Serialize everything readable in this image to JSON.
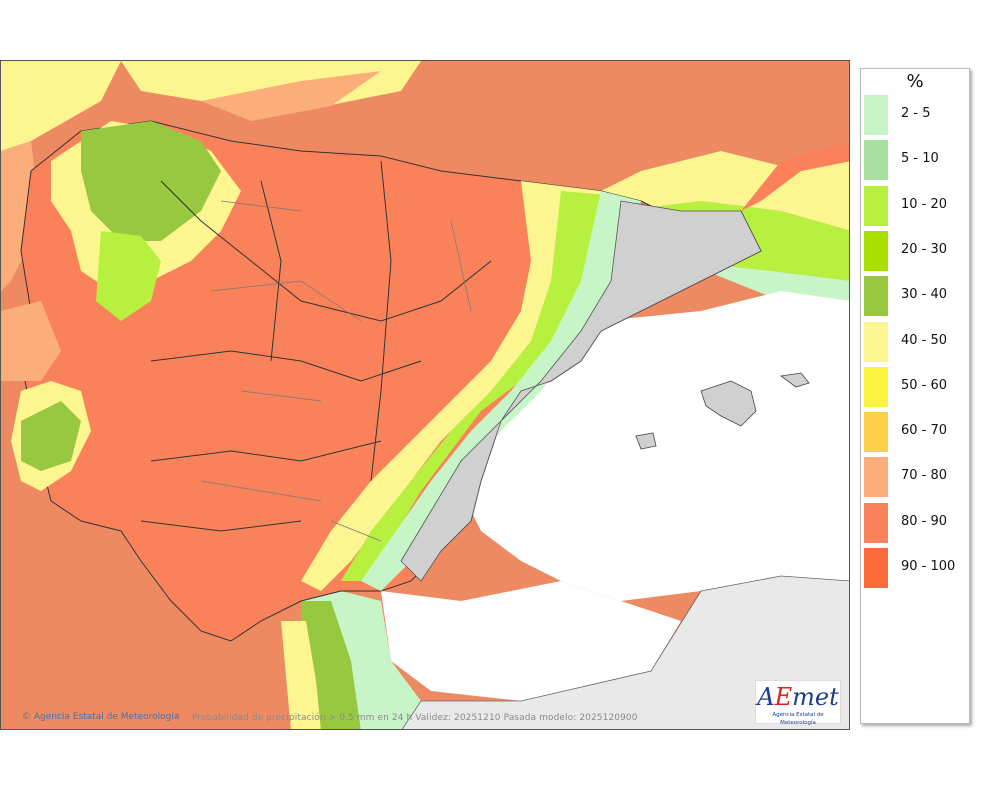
{
  "map": {
    "caption": "Probabilidad de precipitación > 0.5 mm en 24 h Validez: 20251210 Pasada modelo: 2025120900",
    "credit": "Agencia Estatal de Meteorología",
    "credit_symbol": "©",
    "sea_color": "#ee8a62",
    "land_color": "#e9e9e9",
    "logo": {
      "word_a": "A",
      "word_e": "E",
      "word_rest": "met",
      "subtitle": "Agencia Estatal de Meteorología"
    }
  },
  "legend": {
    "title": "%",
    "items": [
      {
        "label": "2 - 5",
        "color": "#c8f5c8"
      },
      {
        "label": "5 - 10",
        "color": "#a8e0a0"
      },
      {
        "label": "10 - 20",
        "color": "#b8f040"
      },
      {
        "label": "20 - 30",
        "color": "#a8e000"
      },
      {
        "label": "30 - 40",
        "color": "#98c840"
      },
      {
        "label": "40 - 50",
        "color": "#fdf690"
      },
      {
        "label": "50 - 60",
        "color": "#fbf540"
      },
      {
        "label": "60 - 70",
        "color": "#fdd24a"
      },
      {
        "label": "70 - 80",
        "color": "#fbae7a"
      },
      {
        "label": "80 - 90",
        "color": "#f9825a"
      },
      {
        "label": "90 - 100",
        "color": "#fb6a3a"
      }
    ]
  }
}
